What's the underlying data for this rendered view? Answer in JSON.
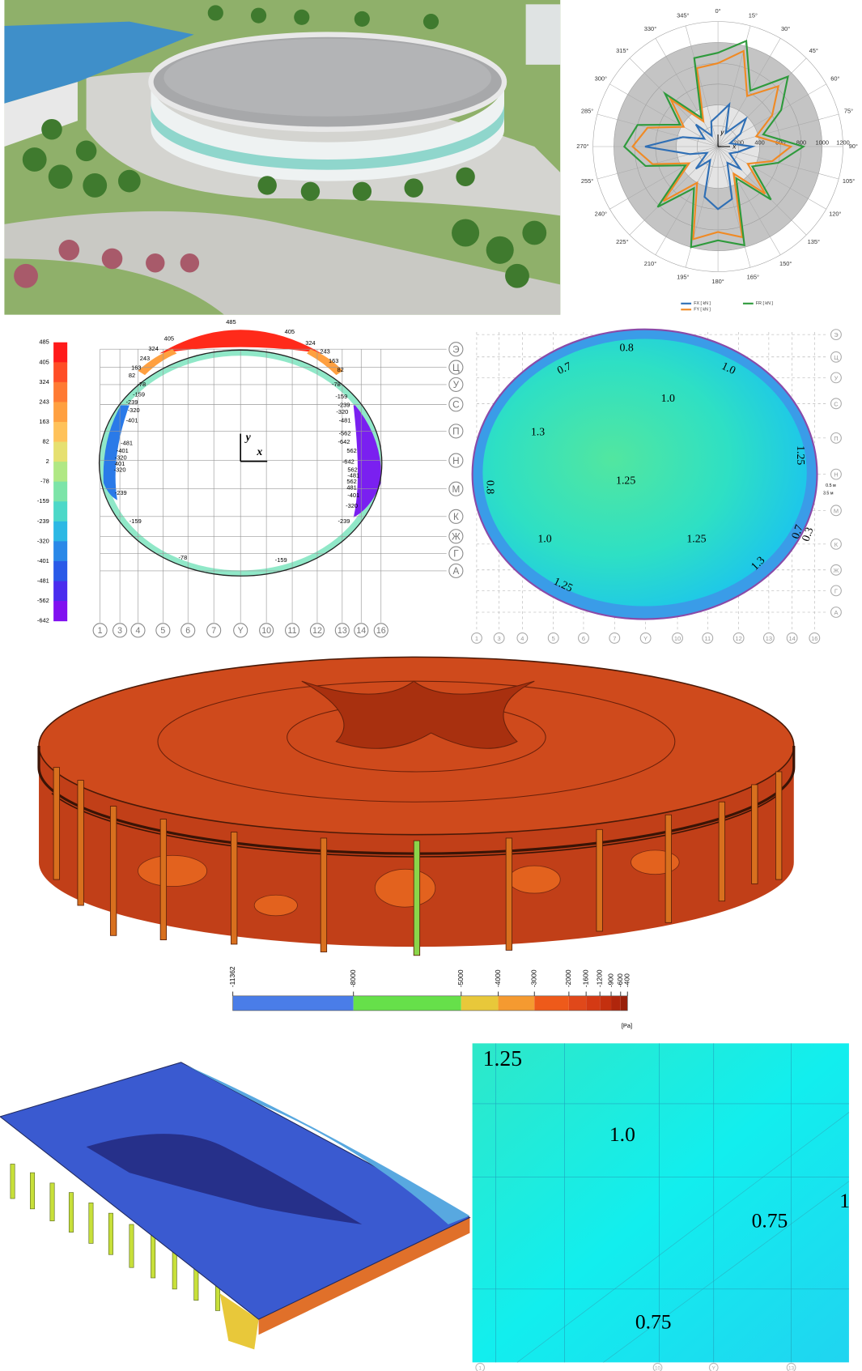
{
  "polar_chart": {
    "type": "polar",
    "rlim": [
      0,
      1200
    ],
    "radial_ticks": [
      200,
      400,
      600,
      800,
      1000,
      1200
    ],
    "angle_ticks": [
      {
        "value": 0,
        "label": "0°"
      },
      {
        "value": 15,
        "label": "15°"
      },
      {
        "value": 30,
        "label": "30°"
      },
      {
        "value": 45,
        "label": "45°"
      },
      {
        "value": 60,
        "label": "60°"
      },
      {
        "value": 75,
        "label": "75°"
      },
      {
        "value": 90,
        "label": "90°"
      },
      {
        "value": 105,
        "label": "105°"
      },
      {
        "value": 120,
        "label": "120°"
      },
      {
        "value": 135,
        "label": "135°"
      },
      {
        "value": 150,
        "label": "150°"
      },
      {
        "value": 165,
        "label": "165°"
      },
      {
        "value": 180,
        "label": "180°"
      },
      {
        "value": 195,
        "label": "195°"
      },
      {
        "value": 210,
        "label": "210°"
      },
      {
        "value": 225,
        "label": "225°"
      },
      {
        "value": 240,
        "label": "240°"
      },
      {
        "value": 255,
        "label": "255°"
      },
      {
        "value": 270,
        "label": "270°"
      },
      {
        "value": 285,
        "label": "285°"
      },
      {
        "value": 300,
        "label": "300°"
      },
      {
        "value": 315,
        "label": "315°"
      },
      {
        "value": 330,
        "label": "330°"
      },
      {
        "value": 345,
        "label": "345°"
      }
    ],
    "axis_labels": [
      "x",
      "y"
    ],
    "angles": [
      0,
      15,
      30,
      45,
      60,
      75,
      90,
      105,
      120,
      135,
      150,
      165,
      180,
      195,
      210,
      225,
      240,
      255,
      270,
      285,
      300,
      315,
      330,
      345
    ],
    "series": [
      {
        "name": "FX [ kN ]",
        "color": "#2f6fb5",
        "values": [
          300,
          420,
          150,
          380,
          250,
          120,
          330,
          200,
          130,
          300,
          180,
          520,
          600,
          500,
          150,
          300,
          120,
          280,
          700,
          350,
          150,
          300,
          120,
          250
        ]
      },
      {
        "name": "FY [ kN ]",
        "color": "#f08a24",
        "values": [
          800,
          950,
          560,
          820,
          600,
          380,
          700,
          540,
          330,
          640,
          300,
          900,
          820,
          920,
          400,
          740,
          320,
          650,
          820,
          700,
          380,
          640,
          280,
          780
        ]
      },
      {
        "name": "FR [ kN ]",
        "color": "#2e9a3c",
        "values": [
          900,
          1050,
          620,
          950,
          700,
          450,
          820,
          600,
          380,
          720,
          350,
          980,
          900,
          1000,
          460,
          820,
          360,
          720,
          900,
          800,
          420,
          720,
          320,
          880
        ]
      }
    ]
  },
  "stress_diagram": {
    "colorbar_ticks": [
      485,
      405,
      324,
      243,
      163,
      82,
      2,
      -78,
      -159,
      -239,
      -320,
      -401,
      -481,
      -562,
      -642
    ],
    "colorbar_colors": [
      "#ff1a1a",
      "#ff4d26",
      "#ff7a33",
      "#ffa040",
      "#ffc25a",
      "#e6e070",
      "#b0e884",
      "#7ce4a8",
      "#4cd8c8",
      "#2cb8e4",
      "#2a88e8",
      "#2a5ae8",
      "#4a2cee",
      "#8010f0"
    ],
    "axis_x": "x",
    "axis_y": "y",
    "row_labels": [
      "Э",
      "Ц",
      "У",
      "С",
      "П",
      "Н",
      "М",
      "К",
      "Ж",
      "Г",
      "А"
    ],
    "column_labels": [
      "1",
      "3",
      "4",
      "5",
      "6",
      "7",
      "Y",
      "10",
      "11",
      "12",
      "13",
      "14",
      "16"
    ],
    "point_labels": [
      485,
      405,
      405,
      324,
      324,
      243,
      243,
      163,
      163,
      82,
      82,
      -78,
      -78,
      -159,
      -159,
      -239,
      -239,
      -320,
      -320,
      -401,
      -481,
      -562,
      -642,
      -481,
      562,
      -401,
      -642,
      -320,
      562,
      401,
      -481,
      -320,
      562,
      481,
      -239,
      -401,
      -320,
      -159,
      -239,
      -78,
      -159
    ]
  },
  "wind_contour": {
    "row_labels": [
      "Э",
      "Ц",
      "У",
      "С",
      "П",
      "Н",
      "М",
      "К",
      "Ж",
      "Г",
      "А"
    ],
    "column_labels": [
      "1",
      "3",
      "4",
      "5",
      "6",
      "7",
      "Y",
      "10",
      "11",
      "12",
      "13",
      "14",
      "16"
    ],
    "contour_labels": [
      "0.8",
      "0.7",
      "1.0",
      "1.0",
      "1.3",
      "1.25",
      "1.25",
      "0.8",
      "1.0",
      "1.25",
      "0.7",
      "0.3",
      "1.3",
      "1.25"
    ],
    "dimension_labels": [
      "0.5 м",
      "3.5 м"
    ]
  },
  "pressure_model": {
    "colorbar_ticks": [
      -11362,
      -8000,
      -5000,
      -4000,
      -3000,
      -2000,
      -1600,
      -1200,
      -900,
      -600,
      -400
    ],
    "colorbar_colors": [
      "#4a7de8",
      "#66e04a",
      "#e8c83a",
      "#f59a30",
      "#ee5a1a",
      "#e0481a",
      "#d43a14",
      "#c4300f",
      "#b0260c",
      "#98200a"
    ],
    "unit": "[Pa]"
  },
  "roof_contour": {
    "contour_labels": [
      "1.25",
      "1.0",
      "0.75",
      "1",
      "0.75"
    ],
    "column_labels": [
      "1",
      "10",
      "Y",
      "13"
    ]
  }
}
